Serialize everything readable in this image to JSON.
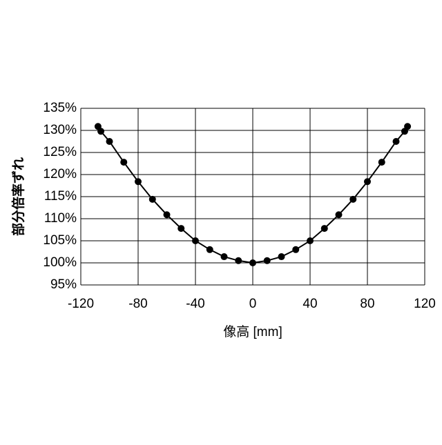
{
  "chart_data": {
    "type": "line",
    "x_label": "像高 [mm]",
    "y_label": "部分倍率ずれ",
    "xlim": [
      -120,
      120
    ],
    "xticks": [
      -120,
      -80,
      -40,
      0,
      40,
      80,
      120
    ],
    "ylim": [
      95,
      135
    ],
    "yticks": [
      {
        "value": 95,
        "label": "95%"
      },
      {
        "value": 100,
        "label": "100%"
      },
      {
        "value": 105,
        "label": "105%"
      },
      {
        "value": 110,
        "label": "110%"
      },
      {
        "value": 115,
        "label": "115%"
      },
      {
        "value": 120,
        "label": "120%"
      },
      {
        "value": 125,
        "label": "125%"
      },
      {
        "value": 130,
        "label": "130%"
      },
      {
        "value": 135,
        "label": "135%"
      }
    ],
    "grid": true,
    "x": [
      -108,
      -106,
      -100,
      -90,
      -80,
      -70,
      -60,
      -50,
      -40,
      -30,
      -20,
      -10,
      0,
      10,
      20,
      30,
      40,
      50,
      60,
      70,
      80,
      90,
      100,
      106,
      108
    ],
    "series": [
      {
        "color": "#000000",
        "values": [
          130.9,
          129.8,
          127.5,
          122.8,
          118.4,
          114.4,
          110.9,
          107.8,
          105.0,
          103.0,
          101.4,
          100.5,
          100.0,
          100.5,
          101.4,
          103.0,
          105.0,
          107.8,
          110.9,
          114.4,
          118.4,
          122.8,
          127.5,
          129.8,
          130.9
        ]
      }
    ]
  }
}
